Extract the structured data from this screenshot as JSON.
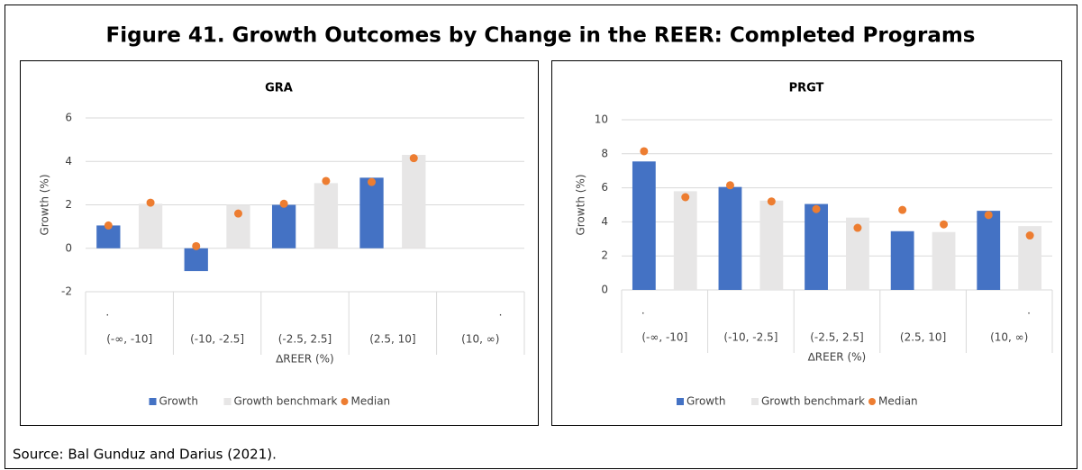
{
  "title": "Figure 41. Growth Outcomes by Change in the REER: Completed Programs",
  "source": "Source: Bal Gunduz and Darius (2021).",
  "chart_data": [
    {
      "type": "bar",
      "title": "GRA",
      "ylabel": "Growth (%)",
      "xlabel": "∆REER (%)",
      "categories": [
        "(-∞, -10]",
        "(-10, -2.5]",
        "(-2.5, 2.5]",
        "(2.5, 10]",
        "(10, ∞)"
      ],
      "bar_labels": [
        [
          ".",
          null
        ],
        [
          null,
          null
        ],
        [
          null,
          null
        ],
        [
          null,
          null
        ],
        [
          null,
          "."
        ]
      ],
      "series": [
        {
          "name": "Growth",
          "color": "#4472c4",
          "values": [
            1.05,
            -1.05,
            2.0,
            3.25,
            null
          ]
        },
        {
          "name": "Growth benchmark",
          "color": "#e7e6e6",
          "values": [
            2.05,
            2.0,
            3.0,
            4.3,
            null
          ]
        },
        {
          "name": "Median",
          "color": "#ed7d31",
          "values": [
            [
              1.05,
              2.1
            ],
            [
              0.1,
              1.6
            ],
            [
              2.05,
              3.1
            ],
            [
              3.05,
              4.15
            ],
            [
              null,
              null
            ]
          ]
        }
      ],
      "ylim": [
        -2,
        6
      ],
      "yticks": [
        -2,
        0,
        2,
        4,
        6
      ],
      "grid": true,
      "legend": "bottom"
    },
    {
      "type": "bar",
      "title": "PRGT",
      "ylabel": "Growth (%)",
      "xlabel": "∆REER (%)",
      "categories": [
        "(-∞, -10]",
        "(-10, -2.5]",
        "(-2.5, 2.5]",
        "(2.5, 10]",
        "(10, ∞)"
      ],
      "bar_labels": [
        [
          ".",
          null
        ],
        [
          null,
          null
        ],
        [
          null,
          null
        ],
        [
          null,
          null
        ],
        [
          null,
          "."
        ]
      ],
      "series": [
        {
          "name": "Growth",
          "color": "#4472c4",
          "values": [
            7.55,
            6.05,
            5.05,
            3.45,
            4.65
          ]
        },
        {
          "name": "Growth benchmark",
          "color": "#e7e6e6",
          "values": [
            5.8,
            5.25,
            4.25,
            3.4,
            3.75
          ]
        },
        {
          "name": "Median",
          "color": "#ed7d31",
          "values": [
            [
              8.15,
              5.45
            ],
            [
              6.15,
              5.2
            ],
            [
              4.75,
              3.65
            ],
            [
              4.7,
              3.85
            ],
            [
              4.4,
              3.2
            ]
          ]
        }
      ],
      "ylim": [
        0,
        10
      ],
      "yticks": [
        0,
        2,
        4,
        6,
        8,
        10
      ],
      "grid": true,
      "legend": "bottom"
    }
  ]
}
